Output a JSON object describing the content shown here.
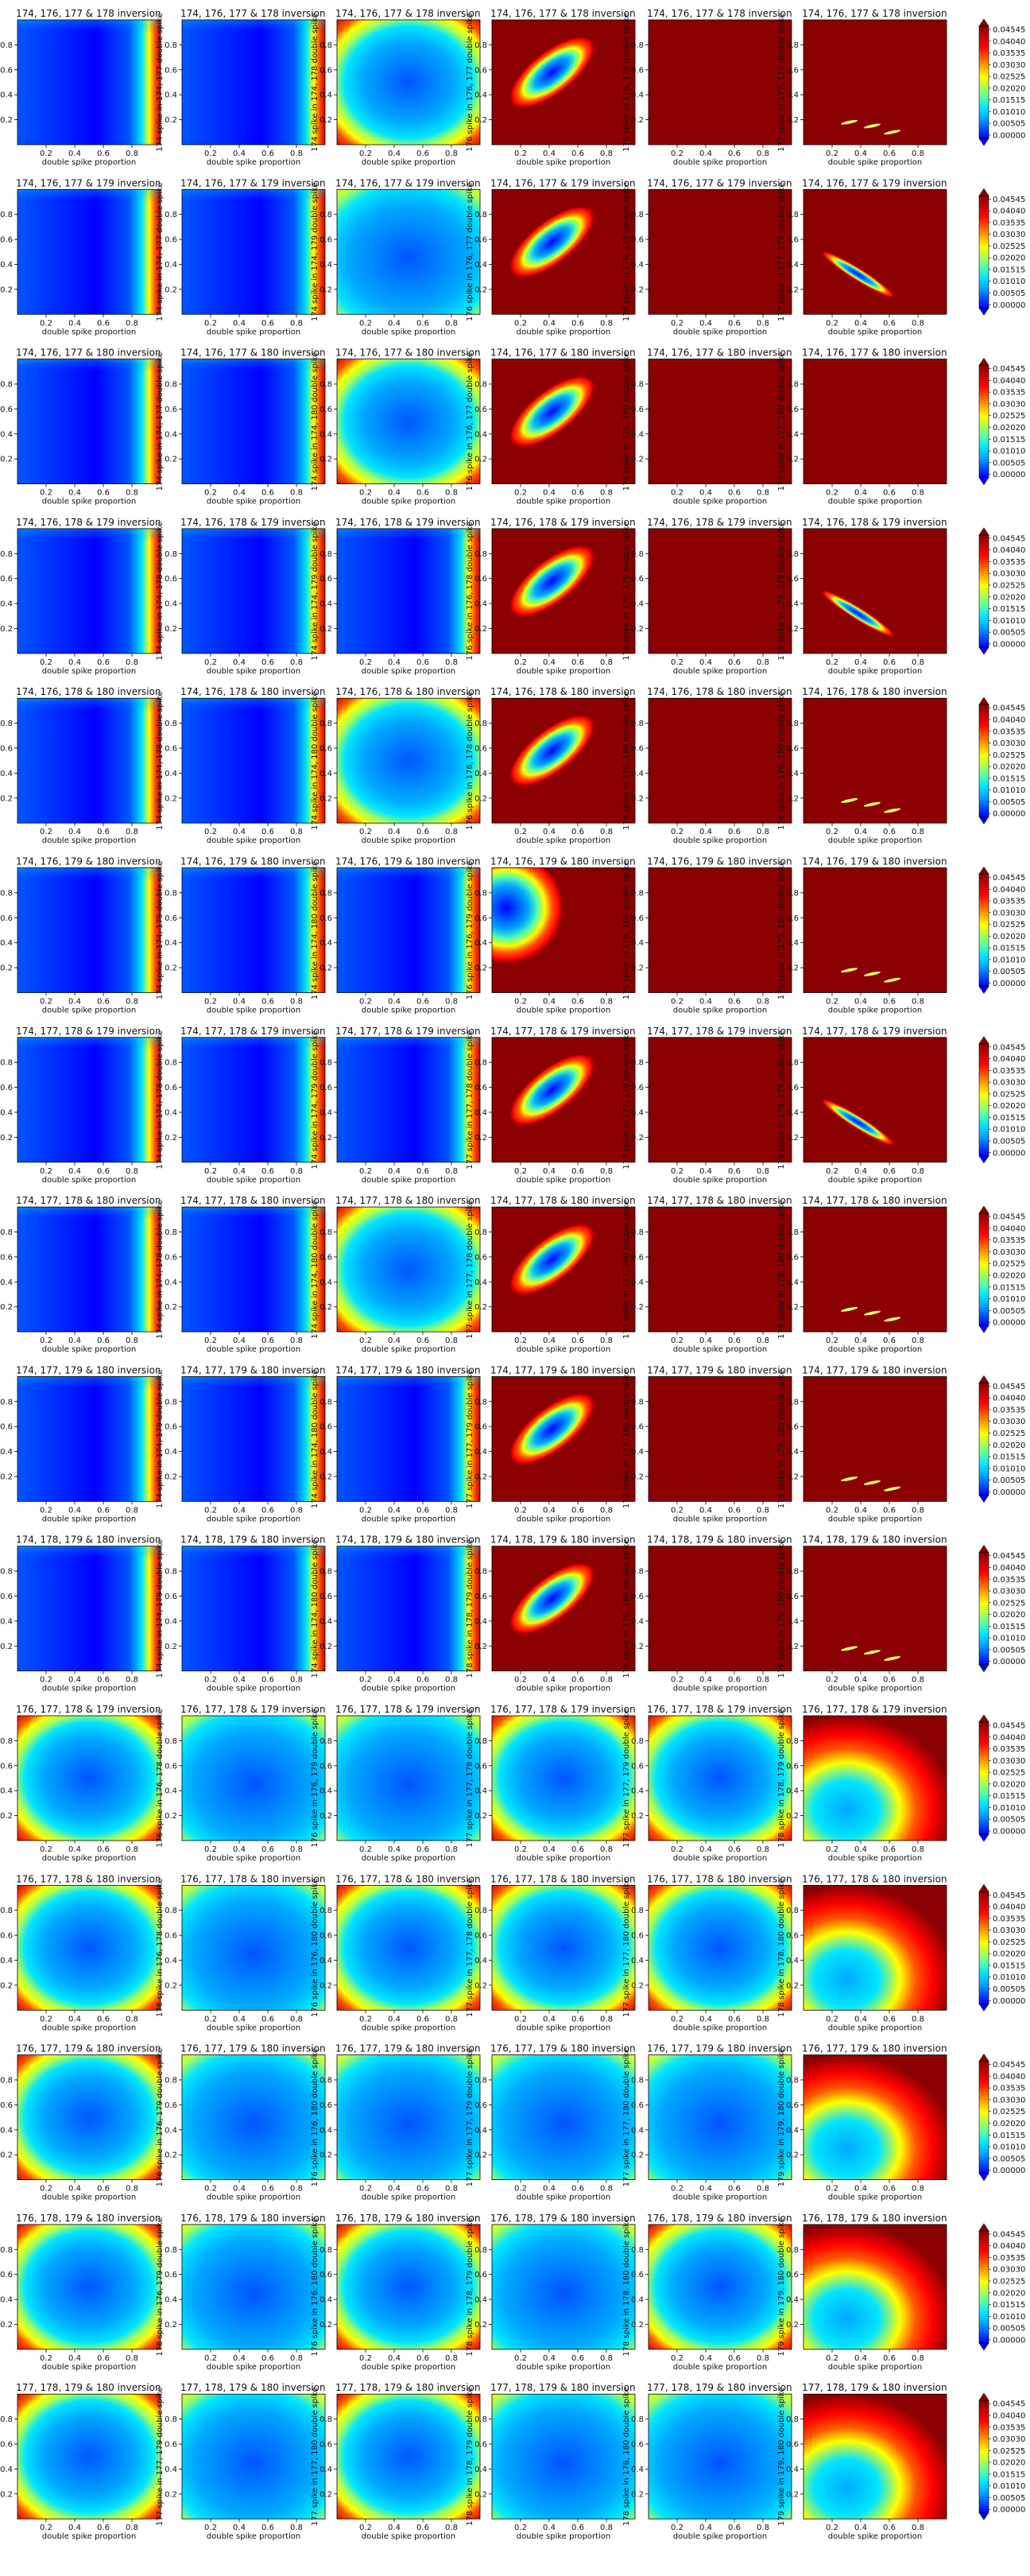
{
  "chart_data": {
    "type": "heatmap",
    "layout": {
      "rows": 15,
      "cols": 6
    },
    "xlabel": "double spike proportion",
    "xticks": [
      "0.2",
      "0.4",
      "0.6",
      "0.8"
    ],
    "yticks": [
      "0.2",
      "0.4",
      "0.6",
      "0.8"
    ],
    "xlim": [
      0,
      1
    ],
    "ylim": [
      0,
      1
    ],
    "colorbar": {
      "colors": [
        "#0000ff",
        "#0055ff",
        "#00aaff",
        "#00e5ff",
        "#55ffaa",
        "#aaff55",
        "#ffff00",
        "#ffaa00",
        "#ff5500",
        "#ff0000",
        "#c80000",
        "#8b0000"
      ],
      "ticks": [
        "0.04545",
        "0.04040",
        "0.03535",
        "0.03030",
        "0.02525",
        "0.02020",
        "0.01515",
        "0.01010",
        "0.00505",
        "0.00000"
      ],
      "extend": "both"
    },
    "rows": [
      {
        "title": "174, 176, 177 & 178 inversion",
        "ylabels": [
          "174 spike in 174, 176 double spike",
          "174 spike in 174, 177 double spike",
          "174 spike in 174, 178 double spike",
          "176 spike in 176, 177 double spike",
          "176 spike in 176, 178 double spike",
          "177 spike in 177, 178 double spike"
        ],
        "patterns": [
          "edgeR",
          "edgeR",
          "bowl",
          "petal",
          "red",
          "spots"
        ]
      },
      {
        "title": "174, 176, 177 & 179 inversion",
        "ylabels": [
          "174 spike in 174, 176 double spike",
          "174 spike in 174, 177 double spike",
          "174 spike in 174, 179 double spike",
          "176 spike in 176, 177 double spike",
          "176 spike in 176, 179 double spike",
          "177 spike in 177, 179 double spike"
        ],
        "patterns": [
          "edgeR",
          "edgeR",
          "bowlSoft",
          "petal",
          "red",
          "streak"
        ]
      },
      {
        "title": "174, 176, 177 & 180 inversion",
        "ylabels": [
          "174 spike in 174, 176 double spike",
          "174 spike in 174, 177 double spike",
          "174 spike in 174, 180 double spike",
          "176 spike in 176, 177 double spike",
          "176 spike in 176, 180 double spike",
          "177 spike in 177, 180 double spike"
        ],
        "patterns": [
          "edgeR",
          "edgeR",
          "bowl",
          "petal",
          "red",
          "red"
        ]
      },
      {
        "title": "174, 176, 178 & 179 inversion",
        "ylabels": [
          "174 spike in 174, 176 double spike",
          "174 spike in 174, 178 double spike",
          "174 spike in 174, 179 double spike",
          "176 spike in 176, 178 double spike",
          "176 spike in 176, 179 double spike",
          "178 spike in 178, 179 double spike"
        ],
        "patterns": [
          "edgeR",
          "edgeR",
          "edgeR",
          "petal",
          "red",
          "streak"
        ]
      },
      {
        "title": "174, 176, 178 & 180 inversion",
        "ylabels": [
          "174 spike in 174, 176 double spike",
          "174 spike in 174, 178 double spike",
          "174 spike in 174, 180 double spike",
          "176 spike in 176, 178 double spike",
          "176 spike in 176, 180 double spike",
          "178 spike in 178, 180 double spike"
        ],
        "patterns": [
          "edgeR",
          "edgeR",
          "bowl",
          "petal",
          "red",
          "spots"
        ]
      },
      {
        "title": "174, 176, 179 & 180 inversion",
        "ylabels": [
          "174 spike in 174, 176 double spike",
          "174 spike in 174, 179 double spike",
          "174 spike in 174, 180 double spike",
          "176 spike in 176, 179 double spike",
          "176 spike in 176, 180 double spike",
          "179 spike in 179, 180 double spike"
        ],
        "patterns": [
          "edgeR",
          "edgeR",
          "edgeR",
          "fan",
          "red",
          "spots"
        ]
      },
      {
        "title": "174, 177, 178 & 179 inversion",
        "ylabels": [
          "174 spike in 174, 177 double spike",
          "174 spike in 174, 178 double spike",
          "174 spike in 174, 179 double spike",
          "177 spike in 177, 178 double spike",
          "177 spike in 177, 179 double spike",
          "178 spike in 178, 179 double spike"
        ],
        "patterns": [
          "edgeR",
          "edgeR",
          "edgeR",
          "petal",
          "red",
          "streak"
        ]
      },
      {
        "title": "174, 177, 178 & 180 inversion",
        "ylabels": [
          "174 spike in 174, 177 double spike",
          "174 spike in 174, 178 double spike",
          "174 spike in 174, 180 double spike",
          "177 spike in 177, 178 double spike",
          "177 spike in 177, 180 double spike",
          "178 spike in 178, 180 double spike"
        ],
        "patterns": [
          "edgeR",
          "edgeR",
          "bowl",
          "petal",
          "red",
          "spots"
        ]
      },
      {
        "title": "174, 177, 179 & 180 inversion",
        "ylabels": [
          "174 spike in 174, 177 double spike",
          "174 spike in 174, 179 double spike",
          "174 spike in 174, 180 double spike",
          "177 spike in 177, 179 double spike",
          "177 spike in 177, 180 double spike",
          "179 spike in 179, 180 double spike"
        ],
        "patterns": [
          "edgeR",
          "edgeR",
          "edgeR",
          "petal",
          "red",
          "spots"
        ]
      },
      {
        "title": "174, 178, 179 & 180 inversion",
        "ylabels": [
          "174 spike in 174, 178 double spike",
          "174 spike in 174, 179 double spike",
          "174 spike in 174, 180 double spike",
          "178 spike in 178, 179 double spike",
          "178 spike in 178, 180 double spike",
          "179 spike in 179, 180 double spike"
        ],
        "patterns": [
          "edgeR",
          "edgeR",
          "edgeR",
          "petal",
          "red",
          "spots"
        ]
      },
      {
        "title": "176, 177, 178 & 179 inversion",
        "ylabels": [
          "176 spike in 176, 177 double spike",
          "176 spike in 176, 178 double spike",
          "176 spike in 176, 179 double spike",
          "177 spike in 177, 178 double spike",
          "177 spike in 177, 179 double spike",
          "178 spike in 178, 179 double spike"
        ],
        "patterns": [
          "bowl",
          "bowlSoft",
          "bowlSoft",
          "bowl",
          "bowl",
          "fanR"
        ]
      },
      {
        "title": "176, 177, 178 & 180 inversion",
        "ylabels": [
          "176 spike in 176, 177 double spike",
          "176 spike in 176, 178 double spike",
          "176 spike in 176, 180 double spike",
          "177 spike in 177, 178 double spike",
          "177 spike in 177, 180 double spike",
          "178 spike in 178, 180 double spike"
        ],
        "patterns": [
          "bowl",
          "bowlSoft",
          "bowl",
          "bowl",
          "bowl",
          "fanR"
        ]
      },
      {
        "title": "176, 177, 179 & 180 inversion",
        "ylabels": [
          "176 spike in 176, 177 double spike",
          "176 spike in 176, 179 double spike",
          "176 spike in 176, 180 double spike",
          "177 spike in 177, 179 double spike",
          "177 spike in 177, 180 double spike",
          "179 spike in 179, 180 double spike"
        ],
        "patterns": [
          "bowl",
          "bowlSoft",
          "bowlSoft",
          "bowlSoft",
          "bowlSoft",
          "fanR"
        ]
      },
      {
        "title": "176, 178, 179 & 180 inversion",
        "ylabels": [
          "176 spike in 176, 178 double spike",
          "176 spike in 176, 179 double spike",
          "176 spike in 176, 180 double spike",
          "178 spike in 178, 179 double spike",
          "178 spike in 178, 180 double spike",
          "179 spike in 179, 180 double spike"
        ],
        "patterns": [
          "bowl",
          "bowlSoft",
          "bowl",
          "bowlSoft",
          "bowl",
          "fanR"
        ]
      },
      {
        "title": "177, 178, 179 & 180 inversion",
        "ylabels": [
          "177 spike in 177, 178 double spike",
          "177 spike in 177, 179 double spike",
          "177 spike in 177, 180 double spike",
          "178 spike in 178, 179 double spike",
          "178 spike in 178, 180 double spike",
          "179 spike in 179, 180 double spike"
        ],
        "patterns": [
          "bowl",
          "bowlSoft",
          "bowl",
          "bowlSoft",
          "bowlSoft",
          "fanR"
        ]
      }
    ]
  }
}
